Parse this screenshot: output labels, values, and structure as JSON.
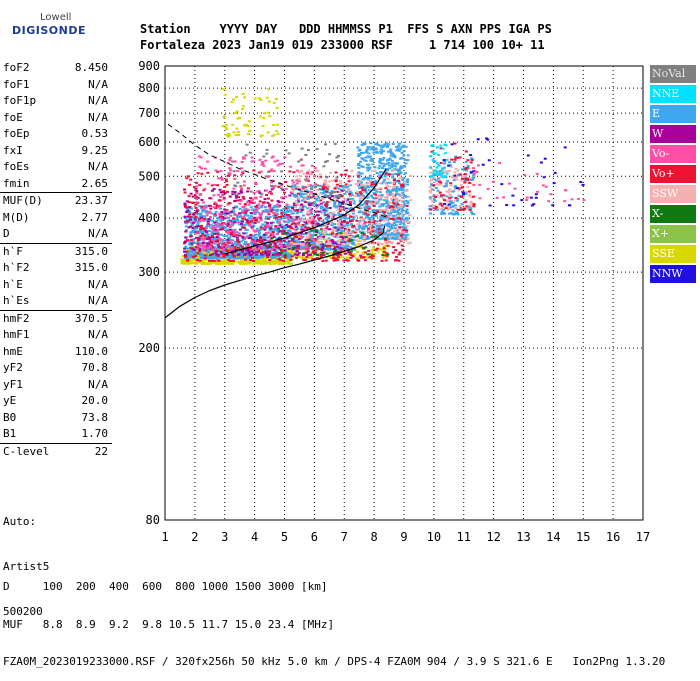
{
  "logo": {
    "top": "Lowell",
    "main": "DIGISONDE"
  },
  "header": {
    "row1": "Station    YYYY DAY   DDD HHMMSS P1  FFS S AXN PPS IGA PS",
    "row2": "Fortaleza 2023 Jan19 019 233000 RSF     1 714 100 10+ 11"
  },
  "params": {
    "group1": [
      {
        "name": "foF2",
        "value": "8.450"
      },
      {
        "name": "foF1",
        "value": "N/A"
      },
      {
        "name": "foF1p",
        "value": "N/A"
      },
      {
        "name": "foE",
        "value": "N/A"
      },
      {
        "name": "foEp",
        "value": "0.53"
      },
      {
        "name": "fxI",
        "value": "9.25"
      },
      {
        "name": "foEs",
        "value": "N/A"
      },
      {
        "name": "fmin",
        "value": "2.65"
      }
    ],
    "group2": [
      {
        "name": "MUF(D)",
        "value": "23.37"
      },
      {
        "name": "M(D)",
        "value": "2.77"
      },
      {
        "name": "D",
        "value": "N/A"
      }
    ],
    "group3": [
      {
        "name": "h`F",
        "value": "315.0"
      },
      {
        "name": "h`F2",
        "value": "315.0"
      },
      {
        "name": "h`E",
        "value": "N/A"
      },
      {
        "name": "h`Es",
        "value": "N/A"
      }
    ],
    "group4": [
      {
        "name": "hmF2",
        "value": "370.5"
      },
      {
        "name": "hmF1",
        "value": "N/A"
      },
      {
        "name": "hmE",
        "value": "110.0"
      },
      {
        "name": "yF2",
        "value": "70.8"
      },
      {
        "name": "yF1",
        "value": "N/A"
      },
      {
        "name": "yE",
        "value": "20.0"
      },
      {
        "name": "B0",
        "value": "73.8"
      },
      {
        "name": "B1",
        "value": "1.70"
      }
    ],
    "group5": [
      {
        "name": "C-level",
        "value": "22"
      }
    ]
  },
  "auto": [
    "Auto:",
    "Artist5",
    "500200"
  ],
  "footer": {
    "line1": "D     100  200  400  600  800 1000 1500 3000 [km]",
    "line2": "MUF   8.8  8.9  9.2  9.8 10.5 11.7 15.0 23.4 [MHz]",
    "line3": "FZA0M_2023019233000.RSF / 320fx256h 50 kHz 5.0 km / DPS-4 FZA0M 904 / 3.9 S 321.6 E   Ion2Png 1.3.20"
  },
  "legend": [
    {
      "label": "NoVal",
      "color": "#808080",
      "text_color": "#e8e8e8"
    },
    {
      "label": "NNE",
      "color": "#00e0ff",
      "text_color": "#ffffff"
    },
    {
      "label": "E",
      "color": "#3fa7f0",
      "text_color": "#ffffff"
    },
    {
      "label": "W",
      "color": "#a8009a",
      "text_color": "#ffffff"
    },
    {
      "label": "Vo-",
      "color": "#ff4fa6",
      "text_color": "#ffffff"
    },
    {
      "label": "Vo+",
      "color": "#ee1133",
      "text_color": "#ffffff"
    },
    {
      "label": "SSW",
      "color": "#f7b0b0",
      "text_color": "#ffffff"
    },
    {
      "label": "X-",
      "color": "#0f7a12",
      "text_color": "#ffffff"
    },
    {
      "label": "X+",
      "color": "#8bc34a",
      "text_color": "#ffffff"
    },
    {
      "label": "SSE",
      "color": "#d8d800",
      "text_color": "#ffffff"
    },
    {
      "label": "NNW",
      "color": "#2010e0",
      "text_color": "#ffffff"
    }
  ],
  "chart_data": {
    "type": "scatter",
    "xlim": [
      1,
      17
    ],
    "ylim": [
      80,
      900
    ],
    "xticks": [
      "1",
      "2",
      "3",
      "4",
      "5",
      "6",
      "7",
      "8",
      "9",
      "10",
      "11",
      "12",
      "13",
      "14",
      "15",
      "16",
      "17"
    ],
    "yticks": [
      "80",
      "200",
      "300",
      "400",
      "500",
      "600",
      "700",
      "800",
      "900"
    ],
    "ytick_values": [
      80,
      200,
      300,
      400,
      500,
      600,
      700,
      800,
      900
    ],
    "y_scale": "log",
    "grid": true,
    "seed": 19,
    "clusters": [
      {
        "color": "#d8d800",
        "count": 500,
        "xr": [
          1.5,
          5.2
        ],
        "yr": [
          315,
          345
        ]
      },
      {
        "color": "#d8d800",
        "count": 180,
        "xr": [
          5.0,
          8.4
        ],
        "yr": [
          325,
          375
        ]
      },
      {
        "color": "#3fa7f0",
        "count": 900,
        "xr": [
          1.6,
          5.2
        ],
        "yr": [
          325,
          430
        ]
      },
      {
        "color": "#3fa7f0",
        "count": 500,
        "xr": [
          5.2,
          7.3
        ],
        "yr": [
          340,
          480
        ]
      },
      {
        "color": "#3fa7f0",
        "count": 700,
        "xr": [
          7.4,
          9.1
        ],
        "yr": [
          360,
          600
        ]
      },
      {
        "color": "#a8009a",
        "count": 450,
        "xr": [
          1.6,
          7.2
        ],
        "yr": [
          330,
          470
        ]
      },
      {
        "color": "#ee1133",
        "count": 500,
        "xr": [
          1.6,
          9.1
        ],
        "yr": [
          320,
          520
        ]
      },
      {
        "color": "#ff4fa6",
        "count": 300,
        "xr": [
          2.0,
          6.0
        ],
        "yr": [
          340,
          560
        ]
      },
      {
        "color": "#f7b0b0",
        "count": 300,
        "xr": [
          5.2,
          9.2
        ],
        "yr": [
          350,
          520
        ]
      },
      {
        "color": "#f7b0b0",
        "count": 120,
        "xr": [
          9.8,
          11.3
        ],
        "yr": [
          420,
          530
        ]
      },
      {
        "color": "#3fa7f0",
        "count": 100,
        "xr": [
          9.8,
          11.3
        ],
        "yr": [
          410,
          560
        ]
      },
      {
        "color": "#ee1133",
        "count": 60,
        "xr": [
          9.8,
          11.3
        ],
        "yr": [
          420,
          600
        ]
      },
      {
        "color": "#00e0ff",
        "count": 40,
        "xr": [
          9.8,
          10.4
        ],
        "yr": [
          500,
          600
        ]
      },
      {
        "color": "#2010e0",
        "count": 40,
        "xr": [
          9.9,
          15.0
        ],
        "yr": [
          430,
          620
        ]
      },
      {
        "color": "#ff4fa6",
        "count": 30,
        "xr": [
          11.2,
          15.0
        ],
        "yr": [
          440,
          540
        ]
      },
      {
        "color": "#d8d800",
        "count": 60,
        "xr": [
          2.8,
          4.8
        ],
        "yr": [
          620,
          800
        ]
      },
      {
        "color": "#808080",
        "count": 60,
        "xr": [
          3.2,
          6.8
        ],
        "yr": [
          450,
          600
        ]
      },
      {
        "color": "#0f7a12",
        "count": 40,
        "xr": [
          4.0,
          8.5
        ],
        "yr": [
          330,
          380
        ]
      }
    ],
    "dashed_curve": [
      [
        1.1,
        660
      ],
      [
        1.5,
        630
      ],
      [
        2.0,
        590
      ],
      [
        2.5,
        560
      ],
      [
        3.0,
        540
      ],
      [
        3.5,
        520
      ],
      [
        4.0,
        505
      ],
      [
        4.5,
        490
      ],
      [
        5.0,
        478
      ],
      [
        5.5,
        465
      ],
      [
        6.0,
        455
      ],
      [
        6.5,
        443
      ],
      [
        7.0,
        432
      ],
      [
        7.5,
        422
      ],
      [
        8.0,
        412
      ],
      [
        8.5,
        400
      ]
    ],
    "curve_lower": [
      [
        1.0,
        235
      ],
      [
        1.5,
        250
      ],
      [
        2.0,
        262
      ],
      [
        2.5,
        272
      ],
      [
        3.0,
        280
      ],
      [
        3.5,
        287
      ],
      [
        4.0,
        294
      ],
      [
        4.5,
        300
      ],
      [
        5.0,
        307
      ],
      [
        5.5,
        313
      ],
      [
        6.0,
        320
      ],
      [
        6.5,
        327
      ],
      [
        7.0,
        335
      ],
      [
        7.5,
        344
      ],
      [
        8.0,
        356
      ],
      [
        8.3,
        370
      ],
      [
        8.35,
        384
      ]
    ],
    "curve_upper": [
      [
        3.0,
        330
      ],
      [
        3.5,
        338
      ],
      [
        4.0,
        345
      ],
      [
        4.5,
        352
      ],
      [
        5.0,
        360
      ],
      [
        5.5,
        370
      ],
      [
        6.0,
        380
      ],
      [
        6.5,
        393
      ],
      [
        7.0,
        407
      ],
      [
        7.5,
        430
      ],
      [
        8.0,
        470
      ],
      [
        8.4,
        520
      ]
    ]
  }
}
